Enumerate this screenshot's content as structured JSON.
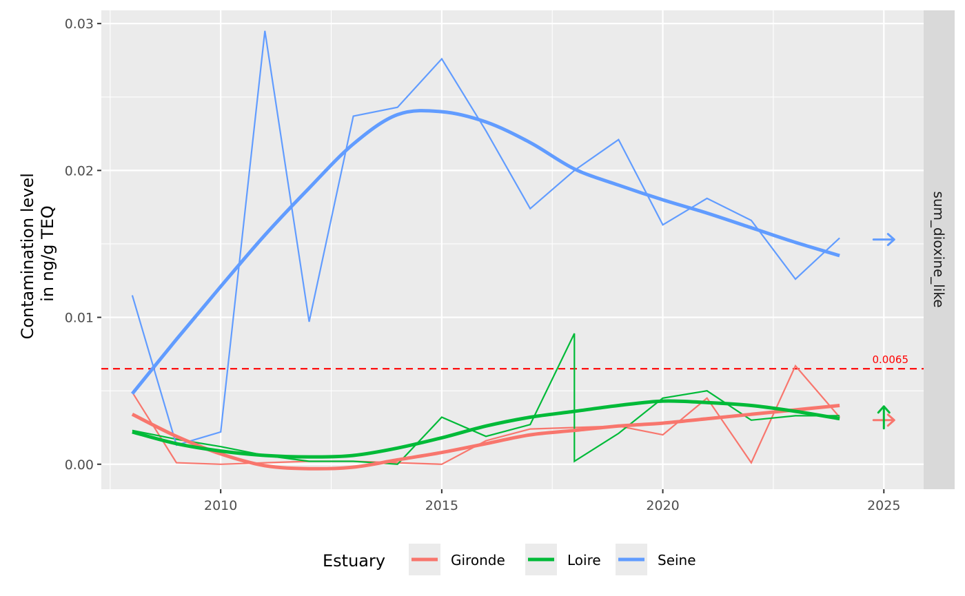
{
  "chart_data": {
    "type": "line",
    "title": "",
    "ylabel_lines": [
      "Contamination level",
      "in ng/g TEQ"
    ],
    "xlabel": "",
    "facet_label": "sum_dioxine_like",
    "xlim": [
      2007.3,
      2025.9
    ],
    "ylim": [
      -0.0017,
      0.0309
    ],
    "x_ticks": [
      2010,
      2015,
      2020,
      2025
    ],
    "x_tick_labels": [
      "2010",
      "2015",
      "2020",
      "2025"
    ],
    "y_ticks": [
      0.0,
      0.01,
      0.02,
      0.03
    ],
    "y_tick_labels": [
      "0.00",
      "0.01",
      "0.02",
      "0.03"
    ],
    "grid": true,
    "threshold": {
      "value": 0.0065,
      "label": "0.0065",
      "color": "#ff0000"
    },
    "legend": {
      "title": "Estuary",
      "position": "bottom"
    },
    "series": [
      {
        "name": "Gironde",
        "color": "#F8766D",
        "x": [
          2008,
          2009,
          2010,
          2011,
          2012,
          2013,
          2014,
          2015,
          2016,
          2017,
          2018,
          2019,
          2020,
          2021,
          2022,
          2023,
          2024
        ],
        "values": [
          0.0049,
          0.0001,
          0.0,
          0.0001,
          0.0002,
          0.0002,
          0.0001,
          0.0,
          0.0016,
          0.0024,
          0.0025,
          0.0026,
          0.002,
          0.0045,
          0.0001,
          0.0067,
          0.0032
        ],
        "trend_x": [
          2008,
          2009,
          2010,
          2011,
          2012,
          2013,
          2014,
          2015,
          2016,
          2017,
          2018,
          2019,
          2020,
          2021,
          2022,
          2023,
          2024
        ],
        "trend": [
          0.0034,
          0.0019,
          0.0007,
          -0.0001,
          -0.0003,
          -0.0002,
          0.0003,
          0.0008,
          0.0014,
          0.002,
          0.0023,
          0.0026,
          0.0028,
          0.0031,
          0.0034,
          0.0037,
          0.004
        ],
        "arrow": {
          "direction": "right",
          "y": 0.003
        }
      },
      {
        "name": "Loire",
        "color": "#00BA38",
        "x": [
          2008,
          2009,
          2010,
          2011,
          2012,
          2013,
          2014,
          2015,
          2016,
          2017,
          2018,
          2018,
          2019,
          2020,
          2021,
          2022,
          2023,
          2024
        ],
        "values": [
          0.0023,
          0.0017,
          0.0012,
          0.0006,
          0.0002,
          0.0002,
          0.0,
          0.0032,
          0.0019,
          0.0027,
          0.0089,
          0.0002,
          0.0021,
          0.0045,
          0.005,
          0.003,
          0.0033,
          0.0033
        ],
        "trend_x": [
          2008,
          2009,
          2010,
          2011,
          2012,
          2013,
          2014,
          2015,
          2016,
          2017,
          2018,
          2019,
          2020,
          2021,
          2022,
          2023,
          2024
        ],
        "trend": [
          0.0022,
          0.0014,
          0.0009,
          0.0006,
          0.0005,
          0.0006,
          0.0011,
          0.0018,
          0.0026,
          0.0032,
          0.0036,
          0.004,
          0.0043,
          0.0042,
          0.004,
          0.0036,
          0.0031
        ],
        "arrow": {
          "direction": "up",
          "y": 0.003
        }
      },
      {
        "name": "Seine",
        "color": "#619CFF",
        "x": [
          2008,
          2009,
          2010,
          2011,
          2012,
          2013,
          2014,
          2015,
          2016,
          2017,
          2018,
          2019,
          2020,
          2021,
          2022,
          2023,
          2024
        ],
        "values": [
          0.0115,
          0.0013,
          0.0022,
          0.0295,
          0.0097,
          0.0237,
          0.0243,
          0.0276,
          0.0227,
          0.0174,
          0.02,
          0.0221,
          0.0163,
          0.0181,
          0.0166,
          0.0126,
          0.0154
        ],
        "trend_x": [
          2008,
          2009,
          2010,
          2011,
          2012,
          2013,
          2014,
          2015,
          2016,
          2017,
          2018,
          2019,
          2020,
          2021,
          2022,
          2023,
          2024
        ],
        "trend": [
          0.0048,
          0.0085,
          0.0121,
          0.0156,
          0.0188,
          0.0218,
          0.0238,
          0.024,
          0.0233,
          0.0219,
          0.0201,
          0.019,
          0.018,
          0.0171,
          0.0161,
          0.0151,
          0.0142
        ],
        "arrow": {
          "direction": "right",
          "y": 0.0153
        }
      }
    ]
  }
}
